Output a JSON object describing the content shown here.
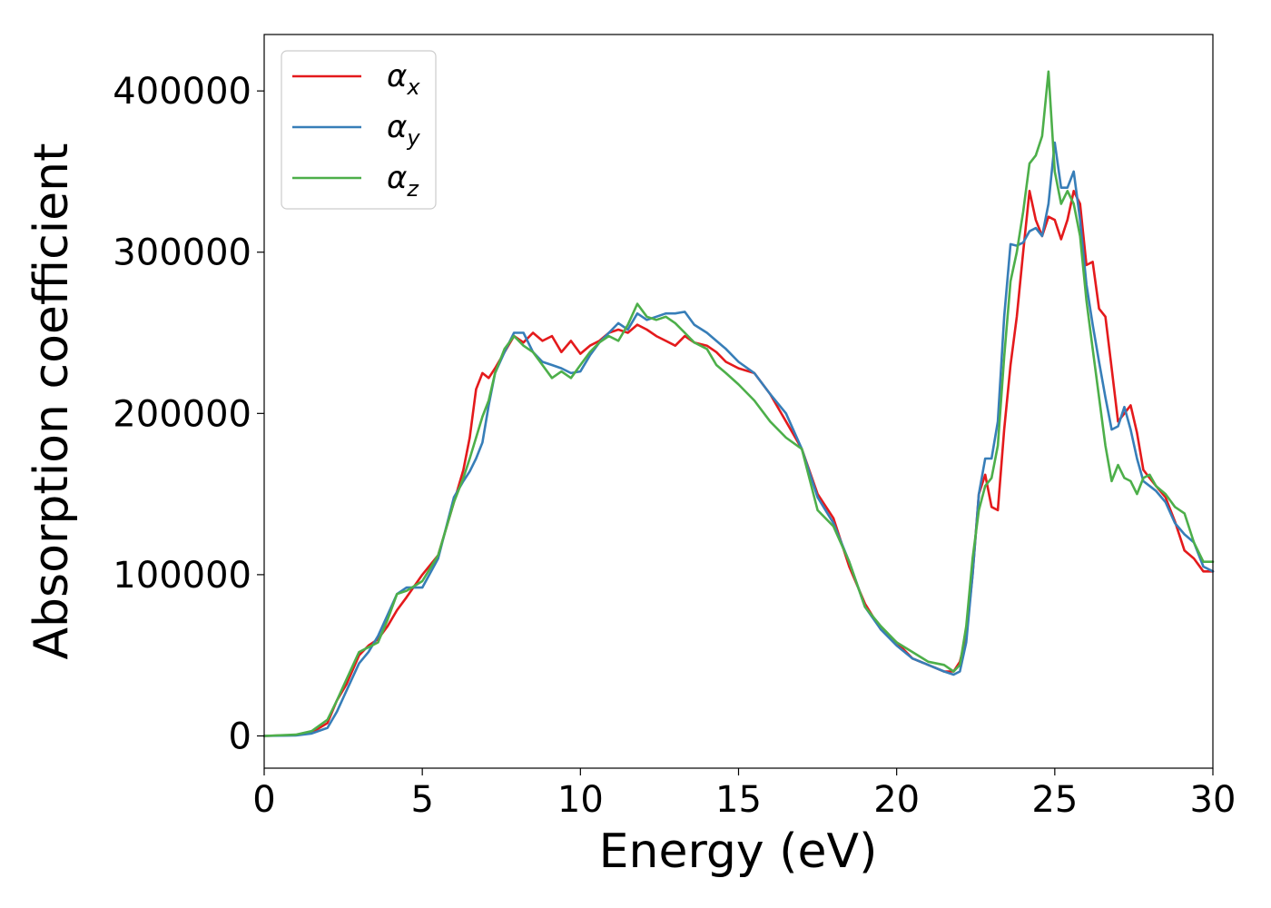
{
  "chart_data": {
    "type": "line",
    "title": "",
    "xlabel": "Energy (eV)",
    "ylabel": "Absorption coefficient",
    "xlim": [
      0,
      30
    ],
    "ylim": [
      -20000,
      435000
    ],
    "xticks": [
      0,
      5,
      10,
      15,
      20,
      25,
      30
    ],
    "yticks": [
      0,
      100000,
      200000,
      300000,
      400000
    ],
    "grid": false,
    "legend_position": "top-left",
    "series": [
      {
        "name": "α",
        "subscript": "x",
        "color": "#e41a1c",
        "x": [
          0,
          1,
          1.5,
          2,
          2.3,
          2.6,
          3,
          3.3,
          3.6,
          3.9,
          4.2,
          4.5,
          5,
          5.5,
          6,
          6.3,
          6.5,
          6.7,
          6.9,
          7.1,
          7.3,
          7.6,
          7.9,
          8.2,
          8.5,
          8.8,
          9.1,
          9.4,
          9.7,
          10,
          10.3,
          10.6,
          10.9,
          11.2,
          11.5,
          11.8,
          12.1,
          12.4,
          12.7,
          13,
          13.3,
          13.6,
          14,
          14.3,
          14.6,
          15,
          15.5,
          16,
          16.5,
          17,
          17.5,
          18,
          18.5,
          19,
          19.5,
          20,
          20.5,
          21,
          21.5,
          21.8,
          22,
          22.2,
          22.4,
          22.6,
          22.8,
          23,
          23.2,
          23.4,
          23.6,
          23.8,
          24,
          24.2,
          24.4,
          24.6,
          24.8,
          25,
          25.2,
          25.4,
          25.6,
          25.8,
          26,
          26.2,
          26.4,
          26.6,
          26.8,
          27,
          27.2,
          27.4,
          27.6,
          27.8,
          28,
          28.2,
          28.5,
          28.8,
          29.1,
          29.4,
          29.7,
          30
        ],
        "values": [
          0,
          500,
          2000,
          8000,
          22000,
          32000,
          50000,
          56000,
          60000,
          68000,
          78000,
          86000,
          100000,
          112000,
          145000,
          165000,
          185000,
          215000,
          225000,
          222000,
          228000,
          238000,
          248000,
          244000,
          250000,
          245000,
          248000,
          238000,
          245000,
          237000,
          242000,
          245000,
          250000,
          252000,
          250000,
          255000,
          252000,
          248000,
          245000,
          242000,
          248000,
          244000,
          242000,
          238000,
          232000,
          228000,
          225000,
          212000,
          195000,
          178000,
          150000,
          135000,
          105000,
          82000,
          66000,
          58000,
          48000,
          44000,
          40000,
          40000,
          46000,
          62000,
          100000,
          150000,
          162000,
          142000,
          140000,
          190000,
          230000,
          260000,
          300000,
          338000,
          320000,
          310000,
          322000,
          320000,
          308000,
          320000,
          338000,
          330000,
          292000,
          294000,
          265000,
          260000,
          228000,
          195000,
          200000,
          205000,
          188000,
          165000,
          160000,
          155000,
          148000,
          133000,
          115000,
          110000,
          102000,
          102000
        ]
      },
      {
        "name": "α",
        "subscript": "y",
        "color": "#377eb8",
        "x": [
          0,
          1,
          1.5,
          2,
          2.3,
          2.6,
          3,
          3.3,
          3.6,
          3.9,
          4.2,
          4.5,
          5,
          5.5,
          6,
          6.3,
          6.5,
          6.7,
          6.9,
          7.1,
          7.3,
          7.6,
          7.9,
          8.2,
          8.5,
          8.8,
          9.1,
          9.4,
          9.7,
          10,
          10.3,
          10.6,
          10.9,
          11.2,
          11.5,
          11.8,
          12.1,
          12.4,
          12.7,
          13,
          13.3,
          13.6,
          14,
          14.3,
          14.6,
          15,
          15.5,
          16,
          16.5,
          17,
          17.5,
          18,
          18.5,
          19,
          19.5,
          20,
          20.5,
          21,
          21.5,
          21.8,
          22,
          22.2,
          22.4,
          22.6,
          22.8,
          23,
          23.2,
          23.4,
          23.6,
          23.8,
          24,
          24.2,
          24.4,
          24.6,
          24.8,
          25,
          25.2,
          25.4,
          25.6,
          25.8,
          26,
          26.2,
          26.4,
          26.6,
          26.8,
          27,
          27.2,
          27.4,
          27.6,
          27.8,
          28,
          28.2,
          28.5,
          28.8,
          29.1,
          29.4,
          29.7,
          30
        ],
        "values": [
          0,
          300,
          1500,
          5000,
          15000,
          28000,
          45000,
          52000,
          62000,
          75000,
          88000,
          92000,
          92000,
          110000,
          148000,
          158000,
          164000,
          172000,
          182000,
          205000,
          225000,
          238000,
          250000,
          250000,
          238000,
          232000,
          230000,
          228000,
          225000,
          226000,
          236000,
          244000,
          250000,
          256000,
          252000,
          262000,
          258000,
          260000,
          262000,
          262000,
          263000,
          255000,
          250000,
          245000,
          240000,
          232000,
          225000,
          212000,
          200000,
          178000,
          148000,
          132000,
          108000,
          80000,
          66000,
          56000,
          48000,
          44000,
          40000,
          38000,
          40000,
          58000,
          100000,
          150000,
          172000,
          172000,
          195000,
          260000,
          305000,
          304000,
          306000,
          313000,
          315000,
          310000,
          330000,
          368000,
          340000,
          340000,
          350000,
          320000,
          280000,
          255000,
          232000,
          210000,
          190000,
          192000,
          204000,
          190000,
          172000,
          158000,
          155000,
          152000,
          145000,
          132000,
          125000,
          120000,
          105000,
          102000
        ]
      },
      {
        "name": "α",
        "subscript": "z",
        "color": "#4daf4a",
        "x": [
          0,
          1,
          1.5,
          2,
          2.3,
          2.6,
          3,
          3.3,
          3.6,
          3.9,
          4.2,
          4.5,
          5,
          5.5,
          6,
          6.3,
          6.5,
          6.7,
          6.9,
          7.1,
          7.3,
          7.6,
          7.9,
          8.2,
          8.5,
          8.8,
          9.1,
          9.4,
          9.7,
          10,
          10.3,
          10.6,
          10.9,
          11.2,
          11.5,
          11.8,
          12.1,
          12.4,
          12.7,
          13,
          13.3,
          13.6,
          14,
          14.3,
          14.6,
          15,
          15.5,
          16,
          16.5,
          17,
          17.5,
          18,
          18.5,
          19,
          19.5,
          20,
          20.5,
          21,
          21.5,
          21.8,
          22,
          22.2,
          22.4,
          22.6,
          22.8,
          23,
          23.2,
          23.4,
          23.6,
          23.8,
          24,
          24.2,
          24.4,
          24.6,
          24.8,
          25,
          25.2,
          25.4,
          25.6,
          25.8,
          26,
          26.2,
          26.4,
          26.6,
          26.8,
          27,
          27.2,
          27.4,
          27.6,
          27.8,
          28,
          28.2,
          28.5,
          28.8,
          29.1,
          29.4,
          29.7,
          30
        ],
        "values": [
          0,
          800,
          3000,
          10000,
          22000,
          35000,
          52000,
          55000,
          58000,
          72000,
          88000,
          90000,
          96000,
          112000,
          145000,
          160000,
          172000,
          185000,
          198000,
          208000,
          225000,
          240000,
          248000,
          242000,
          238000,
          230000,
          222000,
          226000,
          222000,
          230000,
          238000,
          244000,
          248000,
          245000,
          255000,
          268000,
          260000,
          258000,
          260000,
          256000,
          250000,
          244000,
          240000,
          230000,
          225000,
          218000,
          208000,
          195000,
          185000,
          178000,
          140000,
          130000,
          108000,
          80000,
          68000,
          58000,
          52000,
          46000,
          44000,
          40000,
          44000,
          68000,
          110000,
          140000,
          155000,
          160000,
          180000,
          235000,
          282000,
          300000,
          325000,
          355000,
          360000,
          372000,
          412000,
          350000,
          330000,
          338000,
          330000,
          310000,
          270000,
          240000,
          210000,
          180000,
          158000,
          168000,
          160000,
          158000,
          150000,
          160000,
          162000,
          155000,
          150000,
          142000,
          138000,
          120000,
          108000,
          108000
        ]
      }
    ]
  }
}
